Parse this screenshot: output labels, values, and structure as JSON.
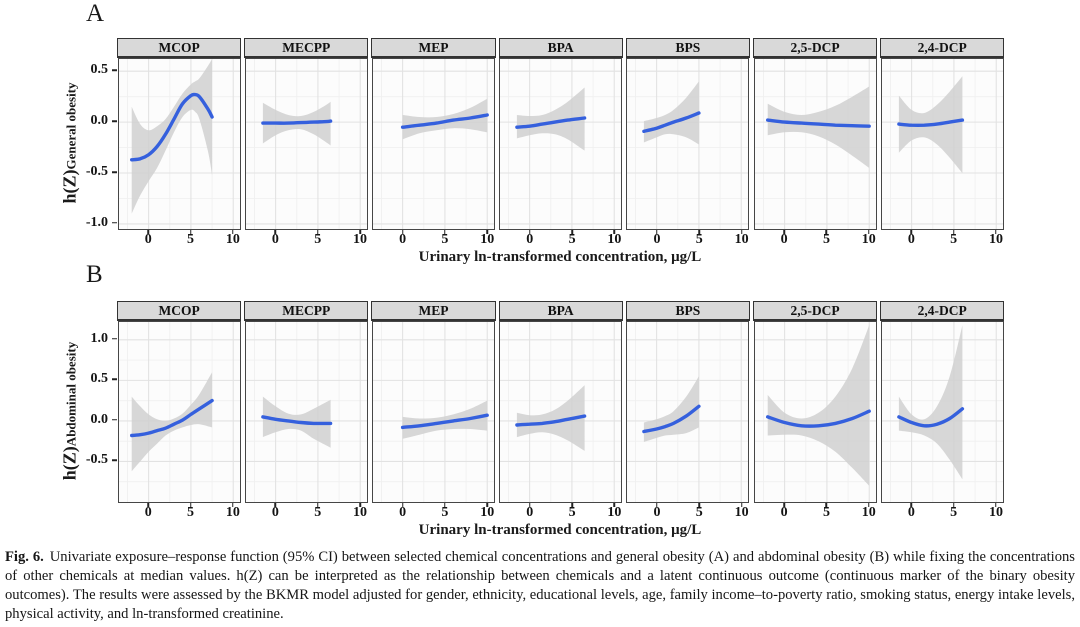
{
  "caption": {
    "label": "Fig. 6.",
    "text": "Univariate exposure–response function (95% CI) between selected chemical concentrations and general obesity (A) and abdominal obesity (B) while fixing the concentrations of other chemicals at median values. h(Z) can be interpreted as the relationship between chemicals and a latent continuous outcome (continuous marker of the binary obesity outcomes). The results were assessed by the BKMR model adjusted for gender, ethnicity, educational levels, age, family income–to-poverty ratio, smoking status, energy intake levels, physical activity, and ln-transformed creatinine."
  },
  "colors": {
    "curve": "#3560dd",
    "band": "#d0d0d0",
    "header_bg": "#d9d9d9",
    "plot_bg": "#fcfcfc",
    "grid_major": "#e2e2e2",
    "grid_minor": "#f0f0f0",
    "text": "#1a1a1a"
  },
  "chart_data": {
    "type": "line",
    "x_axis": {
      "label": "Urinary ln-transformed concentration, μg/L",
      "ticks": [
        "0",
        "5",
        "10"
      ],
      "xlim": [
        -3.5,
        10.8
      ]
    },
    "panels": [
      {
        "panel_label": "A",
        "ylabel_main": "h(Z)",
        "ylabel_sub": "General obesity",
        "yticks": [
          "0.5",
          "0.0",
          "-0.5",
          "-1.0"
        ],
        "ylim": [
          -1.05,
          0.62
        ],
        "facets": [
          {
            "name": "MCOP",
            "x": [
              -2,
              -1,
              0,
              1,
              2,
              3,
              4,
              5,
              5.5,
              6,
              7,
              7.5
            ],
            "y": [
              -0.37,
              -0.36,
              -0.32,
              -0.24,
              -0.12,
              0.03,
              0.18,
              0.26,
              0.27,
              0.25,
              0.13,
              0.05
            ],
            "hi": [
              0.15,
              -0.02,
              -0.08,
              -0.04,
              0.03,
              0.15,
              0.28,
              0.37,
              0.4,
              0.43,
              0.55,
              0.62
            ],
            "lo": [
              -0.9,
              -0.72,
              -0.58,
              -0.45,
              -0.28,
              -0.1,
              0.05,
              0.12,
              0.1,
              0.03,
              -0.28,
              -0.52
            ]
          },
          {
            "name": "MECPP",
            "x": [
              -1.5,
              0,
              1.5,
              3,
              4.5,
              6,
              6.5
            ],
            "y": [
              -0.01,
              -0.01,
              -0.01,
              -0.005,
              0.0,
              0.005,
              0.01
            ],
            "hi": [
              0.19,
              0.12,
              0.07,
              0.06,
              0.1,
              0.17,
              0.2
            ],
            "lo": [
              -0.21,
              -0.13,
              -0.08,
              -0.07,
              -0.12,
              -0.2,
              -0.23
            ]
          },
          {
            "name": "MEP",
            "x": [
              0,
              2,
              4,
              6,
              8,
              10
            ],
            "y": [
              -0.05,
              -0.03,
              -0.01,
              0.02,
              0.04,
              0.07
            ],
            "hi": [
              0.07,
              0.05,
              0.05,
              0.08,
              0.14,
              0.23
            ],
            "lo": [
              -0.17,
              -0.11,
              -0.08,
              -0.06,
              -0.07,
              -0.1
            ]
          },
          {
            "name": "BPA",
            "x": [
              -1.5,
              0,
              1.5,
              3,
              4.5,
              6.5
            ],
            "y": [
              -0.05,
              -0.04,
              -0.02,
              0.0,
              0.02,
              0.04
            ],
            "hi": [
              0.07,
              0.06,
              0.07,
              0.12,
              0.2,
              0.34
            ],
            "lo": [
              -0.16,
              -0.13,
              -0.11,
              -0.12,
              -0.17,
              -0.28
            ]
          },
          {
            "name": "BPS",
            "x": [
              -1.5,
              0,
              1,
              2,
              3.5,
              5
            ],
            "y": [
              -0.09,
              -0.06,
              -0.03,
              0.0,
              0.04,
              0.09
            ],
            "hi": [
              0.01,
              0.04,
              0.07,
              0.12,
              0.24,
              0.4
            ],
            "lo": [
              -0.2,
              -0.15,
              -0.12,
              -0.12,
              -0.15,
              -0.22
            ]
          },
          {
            "name": "2,5-DCP",
            "x": [
              -2,
              0,
              2,
              4,
              6,
              8,
              10
            ],
            "y": [
              0.02,
              0.0,
              -0.01,
              -0.02,
              -0.03,
              -0.035,
              -0.04
            ],
            "hi": [
              0.18,
              0.1,
              0.07,
              0.1,
              0.16,
              0.25,
              0.35
            ],
            "lo": [
              -0.13,
              -0.1,
              -0.1,
              -0.14,
              -0.22,
              -0.33,
              -0.45
            ]
          },
          {
            "name": "2,4-DCP",
            "x": [
              -1.5,
              0,
              1.5,
              3,
              4.5,
              6
            ],
            "y": [
              -0.02,
              -0.03,
              -0.03,
              -0.02,
              0.0,
              0.02
            ],
            "hi": [
              0.26,
              0.12,
              0.09,
              0.17,
              0.3,
              0.45
            ],
            "lo": [
              -0.3,
              -0.18,
              -0.15,
              -0.22,
              -0.35,
              -0.5
            ]
          }
        ]
      },
      {
        "panel_label": "B",
        "ylabel_main": "h(Z)",
        "ylabel_sub": "Abdominal obesity",
        "yticks": [
          "1.0",
          "0.5",
          "0.0",
          "-0.5"
        ],
        "ylim": [
          -1.0,
          1.22
        ],
        "facets": [
          {
            "name": "MCOP",
            "x": [
              -2,
              -1,
              0,
              1,
              2,
              3,
              4,
              5,
              6,
              7.5
            ],
            "y": [
              -0.18,
              -0.17,
              -0.15,
              -0.12,
              -0.09,
              -0.04,
              0.01,
              0.08,
              0.15,
              0.25
            ],
            "hi": [
              0.3,
              0.18,
              0.08,
              0.02,
              0.0,
              0.03,
              0.09,
              0.2,
              0.33,
              0.6
            ],
            "lo": [
              -0.62,
              -0.5,
              -0.38,
              -0.28,
              -0.18,
              -0.12,
              -0.08,
              -0.05,
              -0.04,
              -0.08
            ]
          },
          {
            "name": "MECPP",
            "x": [
              -1.5,
              0,
              1.5,
              3,
              4.5,
              6.5
            ],
            "y": [
              0.05,
              0.02,
              0.0,
              -0.02,
              -0.03,
              -0.03
            ],
            "hi": [
              0.3,
              0.18,
              0.09,
              0.08,
              0.15,
              0.26
            ],
            "lo": [
              -0.2,
              -0.14,
              -0.1,
              -0.12,
              -0.22,
              -0.33
            ]
          },
          {
            "name": "MEP",
            "x": [
              0,
              2,
              4,
              6,
              8,
              10
            ],
            "y": [
              -0.08,
              -0.06,
              -0.03,
              0.0,
              0.03,
              0.07
            ],
            "hi": [
              0.05,
              0.03,
              0.04,
              0.08,
              0.15,
              0.25
            ],
            "lo": [
              -0.22,
              -0.17,
              -0.12,
              -0.1,
              -0.1,
              -0.12
            ]
          },
          {
            "name": "BPA",
            "x": [
              -1.5,
              0,
              1.5,
              3,
              4.5,
              6.5
            ],
            "y": [
              -0.05,
              -0.04,
              -0.03,
              -0.01,
              0.02,
              0.06
            ],
            "hi": [
              0.1,
              0.07,
              0.08,
              0.14,
              0.25,
              0.44
            ],
            "lo": [
              -0.2,
              -0.16,
              -0.14,
              -0.17,
              -0.24,
              -0.37
            ]
          },
          {
            "name": "BPS",
            "x": [
              -1.5,
              0,
              1,
              2,
              3.5,
              5
            ],
            "y": [
              -0.13,
              -0.1,
              -0.07,
              -0.03,
              0.06,
              0.18
            ],
            "hi": [
              -0.02,
              0.02,
              0.06,
              0.12,
              0.3,
              0.55
            ],
            "lo": [
              -0.26,
              -0.21,
              -0.18,
              -0.17,
              -0.15,
              -0.08
            ]
          },
          {
            "name": "2,5-DCP",
            "x": [
              -2,
              0,
              2,
              4,
              6,
              8,
              10
            ],
            "y": [
              0.05,
              -0.02,
              -0.06,
              -0.06,
              -0.03,
              0.03,
              0.12
            ],
            "hi": [
              0.32,
              0.1,
              0.03,
              0.1,
              0.3,
              0.65,
              1.18
            ],
            "lo": [
              -0.18,
              -0.17,
              -0.18,
              -0.25,
              -0.38,
              -0.58,
              -0.8
            ]
          },
          {
            "name": "2,4-DCP",
            "x": [
              -1.5,
              0,
              1.5,
              3,
              4.5,
              6
            ],
            "y": [
              0.05,
              -0.02,
              -0.06,
              -0.04,
              0.03,
              0.15
            ],
            "hi": [
              0.3,
              0.08,
              0.02,
              0.18,
              0.55,
              1.18
            ],
            "lo": [
              -0.12,
              -0.14,
              -0.18,
              -0.28,
              -0.48,
              -0.72
            ]
          }
        ]
      }
    ]
  }
}
